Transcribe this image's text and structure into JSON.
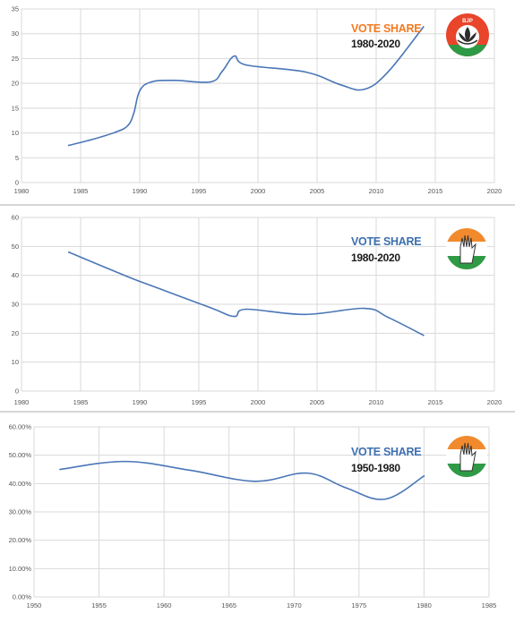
{
  "colors": {
    "line": "#4a76b7",
    "grid": "#d9d9d9",
    "bjp_orange": "#f47a20",
    "inc_blue": "#3d6fb0",
    "saffron": "#f08a2c",
    "green": "#2f9a45"
  },
  "chart_data": [
    {
      "type": "line",
      "title": "VOTE SHARE",
      "subtitle": "1980-2020",
      "title_color": "#f47a20",
      "logo": "bjp-lotus-icon",
      "logo_text": "BJP",
      "xlim": [
        1980,
        2020
      ],
      "ylim": [
        0,
        35
      ],
      "xticks": [
        1980,
        1985,
        1990,
        1995,
        2000,
        2005,
        2010,
        2015,
        2020
      ],
      "xtick_labels": [
        "1980",
        "1985",
        "1990",
        "1995",
        "2000",
        "2005",
        "2010",
        "2015",
        "2020"
      ],
      "yticks": [
        0,
        5,
        10,
        15,
        20,
        25,
        30,
        35
      ],
      "ytick_labels": [
        "0",
        "5",
        "10",
        "15",
        "20",
        "25",
        "30",
        "35"
      ],
      "grid": true,
      "series": [
        {
          "x": [
            1984,
            1986,
            1988,
            1989,
            1989.5,
            1990,
            1991,
            1993,
            1996,
            1997,
            1998,
            1999,
            2004,
            2007,
            2009,
            2011,
            2014
          ],
          "y": [
            7.5,
            8.7,
            10.2,
            11.5,
            14,
            18.5,
            20.3,
            20.6,
            20.3,
            22.5,
            25.5,
            23.7,
            22.3,
            19.7,
            18.8,
            22.3,
            31.4
          ]
        }
      ]
    },
    {
      "type": "line",
      "title": "VOTE SHARE",
      "subtitle": "1980-2020",
      "title_color": "#3d6fb0",
      "logo": "congress-hand-icon",
      "xlim": [
        1980,
        2020
      ],
      "ylim": [
        0,
        60
      ],
      "xticks": [
        1980,
        1985,
        1990,
        1995,
        2000,
        2005,
        2010,
        2015,
        2020
      ],
      "xtick_labels": [
        "1980",
        "1985",
        "1990",
        "1995",
        "2000",
        "2005",
        "2010",
        "2015",
        "2020"
      ],
      "yticks": [
        0,
        10,
        20,
        30,
        40,
        50,
        60
      ],
      "ytick_labels": [
        "0",
        "10",
        "20",
        "30",
        "40",
        "50",
        "60"
      ],
      "grid": true,
      "series": [
        {
          "x": [
            1984,
            1989,
            1991,
            1996,
            1998,
            1999,
            2004,
            2009,
            2011,
            2014
          ],
          "y": [
            48,
            39.5,
            36.4,
            28.8,
            25.8,
            28.3,
            26.5,
            28.6,
            25.5,
            19.3
          ]
        }
      ]
    },
    {
      "type": "line",
      "title": "VOTE SHARE",
      "subtitle": "1950-1980",
      "title_color": "#3d6fb0",
      "logo": "congress-hand-icon",
      "xlim": [
        1950,
        1985
      ],
      "ylim": [
        0,
        60
      ],
      "xticks": [
        1950,
        1955,
        1960,
        1965,
        1970,
        1975,
        1980,
        1985
      ],
      "xtick_labels": [
        "1950",
        "1955",
        "1960",
        "1965",
        "1970",
        "1975",
        "1980",
        "1985"
      ],
      "yticks": [
        0,
        10,
        20,
        30,
        40,
        50,
        60
      ],
      "ytick_labels": [
        "0.00%",
        "10.00%",
        "20.00%",
        "30.00%",
        "40.00%",
        "50.00%",
        "60.00%"
      ],
      "grid": true,
      "series": [
        {
          "x": [
            1952,
            1957,
            1962,
            1967,
            1971,
            1974,
            1977,
            1980
          ],
          "y": [
            45,
            47.8,
            44.7,
            40.8,
            43.7,
            38.5,
            34.5,
            42.7
          ]
        }
      ]
    }
  ]
}
